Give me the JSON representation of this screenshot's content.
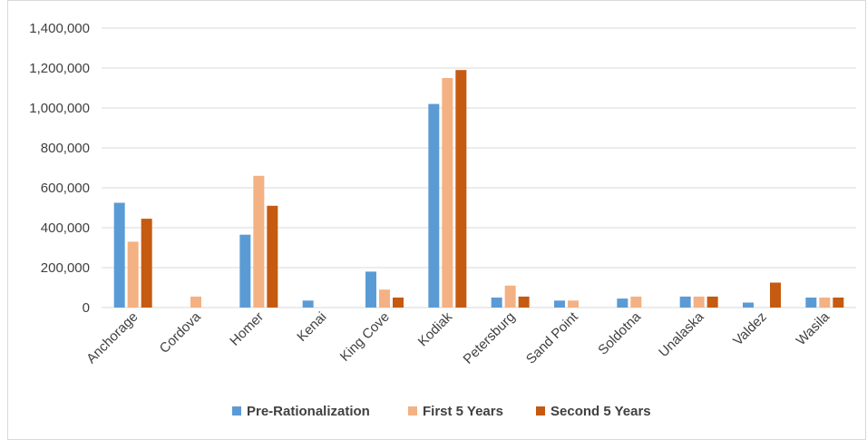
{
  "chart_data": {
    "type": "bar",
    "title": "",
    "xlabel": "",
    "ylabel": "",
    "ylim": [
      0,
      1400000
    ],
    "yticks": [
      0,
      200000,
      400000,
      600000,
      800000,
      1000000,
      1200000,
      1400000
    ],
    "ytick_labels": [
      "0",
      "200,000",
      "400,000",
      "600,000",
      "800,000",
      "1,000,000",
      "1,200,000",
      "1,400,000"
    ],
    "grid": true,
    "legend_position": "bottom",
    "categories": [
      "Anchorage",
      "Cordova",
      "Homer",
      "Kenai",
      "King Cove",
      "Kodiak",
      "Petersburg",
      "Sand Point",
      "Soldotna",
      "Unalaska",
      "Valdez",
      "Wasila"
    ],
    "series": [
      {
        "name": "Pre-Rationalization",
        "color": "#5B9BD5",
        "values": [
          525000,
          0,
          365000,
          35000,
          180000,
          1020000,
          50000,
          35000,
          45000,
          55000,
          25000,
          50000
        ]
      },
      {
        "name": "First 5 Years",
        "color": "#F4B183",
        "values": [
          330000,
          55000,
          660000,
          0,
          90000,
          1150000,
          110000,
          35000,
          55000,
          55000,
          0,
          50000
        ]
      },
      {
        "name": "Second 5 Years",
        "color": "#C55A11",
        "values": [
          445000,
          0,
          510000,
          0,
          50000,
          1190000,
          55000,
          0,
          0,
          55000,
          125000,
          50000
        ]
      }
    ]
  }
}
